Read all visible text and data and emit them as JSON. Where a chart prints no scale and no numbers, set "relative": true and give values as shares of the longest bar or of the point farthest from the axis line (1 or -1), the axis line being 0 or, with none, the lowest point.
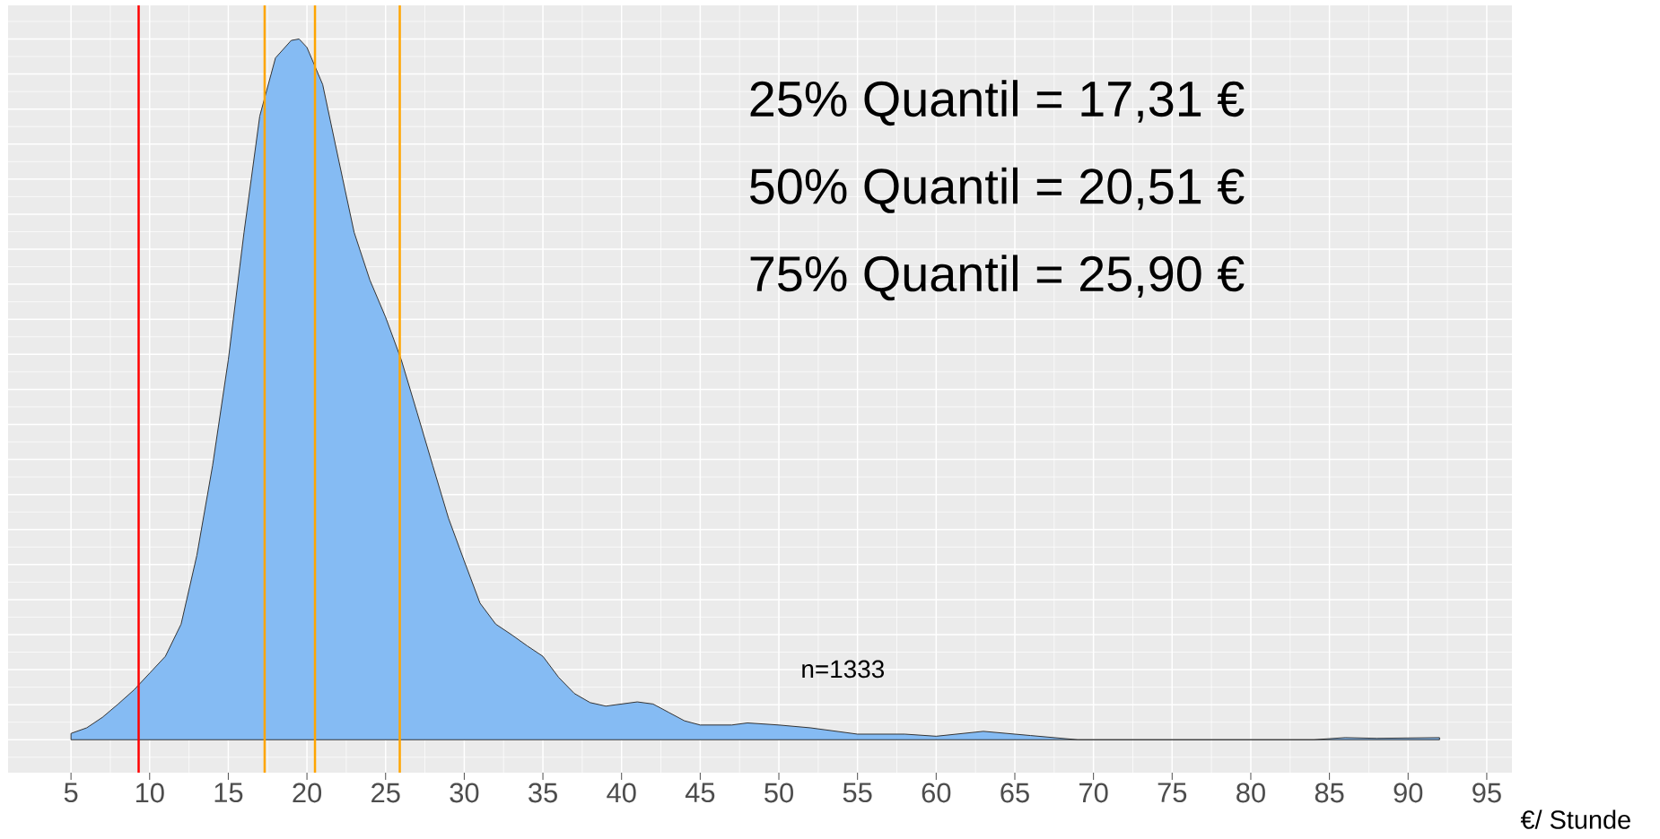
{
  "chart_data": {
    "type": "area",
    "relative": true,
    "xlabel": "€/ Stunde",
    "color": "#85bbf3",
    "x": [
      5,
      6,
      7,
      8,
      9,
      10,
      11,
      12,
      13,
      14,
      15,
      16,
      17,
      18,
      19,
      19.5,
      20,
      21,
      22,
      23,
      24,
      25,
      26,
      27,
      28,
      29,
      30,
      31,
      32,
      33,
      34,
      35,
      36,
      37,
      38,
      39,
      40,
      41,
      42,
      43,
      44,
      45,
      47,
      48,
      50,
      52,
      55,
      58,
      60,
      63,
      66,
      69,
      80,
      84,
      86,
      88,
      92
    ],
    "values": [
      0.009,
      0.017,
      0.032,
      0.051,
      0.071,
      0.095,
      0.119,
      0.165,
      0.263,
      0.391,
      0.542,
      0.724,
      0.89,
      0.973,
      0.998,
      1,
      0.988,
      0.935,
      0.829,
      0.724,
      0.656,
      0.603,
      0.542,
      0.467,
      0.391,
      0.316,
      0.255,
      0.195,
      0.165,
      0.15,
      0.134,
      0.119,
      0.089,
      0.066,
      0.053,
      0.048,
      0.051,
      0.054,
      0.051,
      0.039,
      0.027,
      0.021,
      0.021,
      0.024,
      0.021,
      0.017,
      0.008,
      0.008,
      0.005,
      0.012,
      0.006,
      0,
      0,
      0,
      0.003,
      0.002,
      0.003
    ],
    "xlim": [
      1,
      96.6
    ],
    "xticks": [
      5,
      10,
      15,
      20,
      25,
      30,
      35,
      40,
      45,
      50,
      55,
      60,
      65,
      70,
      75,
      80,
      85,
      90,
      95
    ],
    "grid": true,
    "ref_lines": [
      {
        "axis": "x",
        "value": 9.3,
        "color": "#ff0000"
      },
      {
        "axis": "x",
        "value": 17.31,
        "color": "#ffa500"
      },
      {
        "axis": "x",
        "value": 20.51,
        "color": "#ffa500"
      },
      {
        "axis": "x",
        "value": 25.9,
        "color": "#ffa500"
      }
    ],
    "annotations": [
      "25% Quantil = 17,31 €",
      "50% Quantil = 20,51 €",
      "75% Quantil = 25,90 €",
      "n=1333"
    ]
  }
}
